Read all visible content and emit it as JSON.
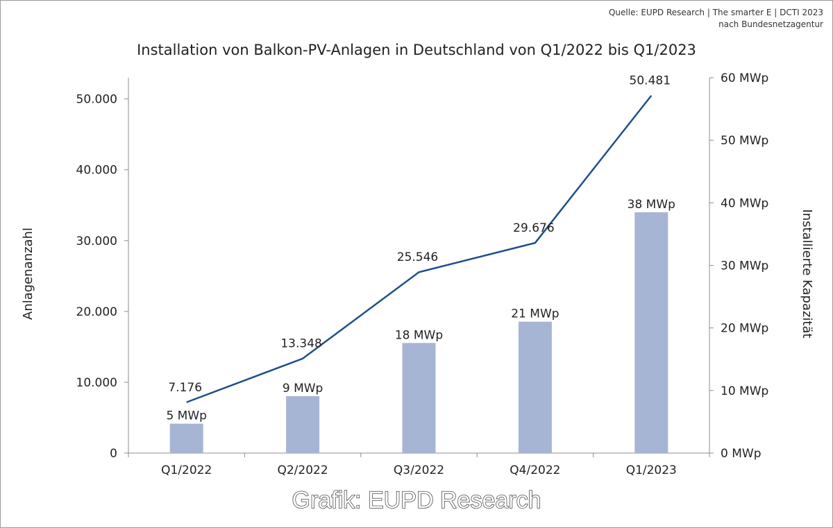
{
  "source": {
    "line1": "Quelle: EUPD Research | The smarter E | DCTI 2023",
    "line2": "nach Bundesnetzagentur"
  },
  "credit": "Grafik: EUPD Research",
  "colors": {
    "bars": "#a7b5d4",
    "line": "#1f4e8c",
    "axis": "#8c8c8c"
  },
  "chart_data": {
    "type": "bar",
    "title": "Installation von Balkon-PV-Anlagen in Deutschland von Q1/2022 bis Q1/2023",
    "categories": [
      "Q1/2022",
      "Q2/2022",
      "Q3/2022",
      "Q4/2022",
      "Q1/2023"
    ],
    "ylabel_left": "Anlagenanzahl",
    "ylabel_right": "Installierte Kapazität",
    "ylim_left": [
      0,
      53000
    ],
    "ylim_right": [
      0,
      60
    ],
    "yticks_left": [
      {
        "value": 0,
        "label": "0"
      },
      {
        "value": 10000,
        "label": "10.000"
      },
      {
        "value": 20000,
        "label": "20.000"
      },
      {
        "value": 30000,
        "label": "30.000"
      },
      {
        "value": 40000,
        "label": "40.000"
      },
      {
        "value": 50000,
        "label": "50.000"
      }
    ],
    "yticks_right": [
      {
        "value": 0,
        "label": "0 MWp"
      },
      {
        "value": 10,
        "label": "10 MWp"
      },
      {
        "value": 20,
        "label": "20 MWp"
      },
      {
        "value": 30,
        "label": "30 MWp"
      },
      {
        "value": 40,
        "label": "40 MWp"
      },
      {
        "value": 50,
        "label": "50 MWp"
      },
      {
        "value": 60,
        "label": "60 MWp"
      }
    ],
    "series": [
      {
        "type": "bar",
        "axis": "right",
        "values": [
          4.7,
          9.1,
          17.6,
          21.0,
          38.5
        ],
        "labels": [
          "5 MWp",
          "9 MWp",
          "18 MWp",
          "21 MWp",
          "38 MWp"
        ]
      },
      {
        "type": "line",
        "axis": "left",
        "values": [
          7176,
          13348,
          25546,
          29676,
          50481
        ],
        "labels": [
          "7.176",
          "13.348",
          "25.546",
          "29.676",
          "50.481"
        ]
      }
    ],
    "grid": false,
    "legend": "none"
  }
}
